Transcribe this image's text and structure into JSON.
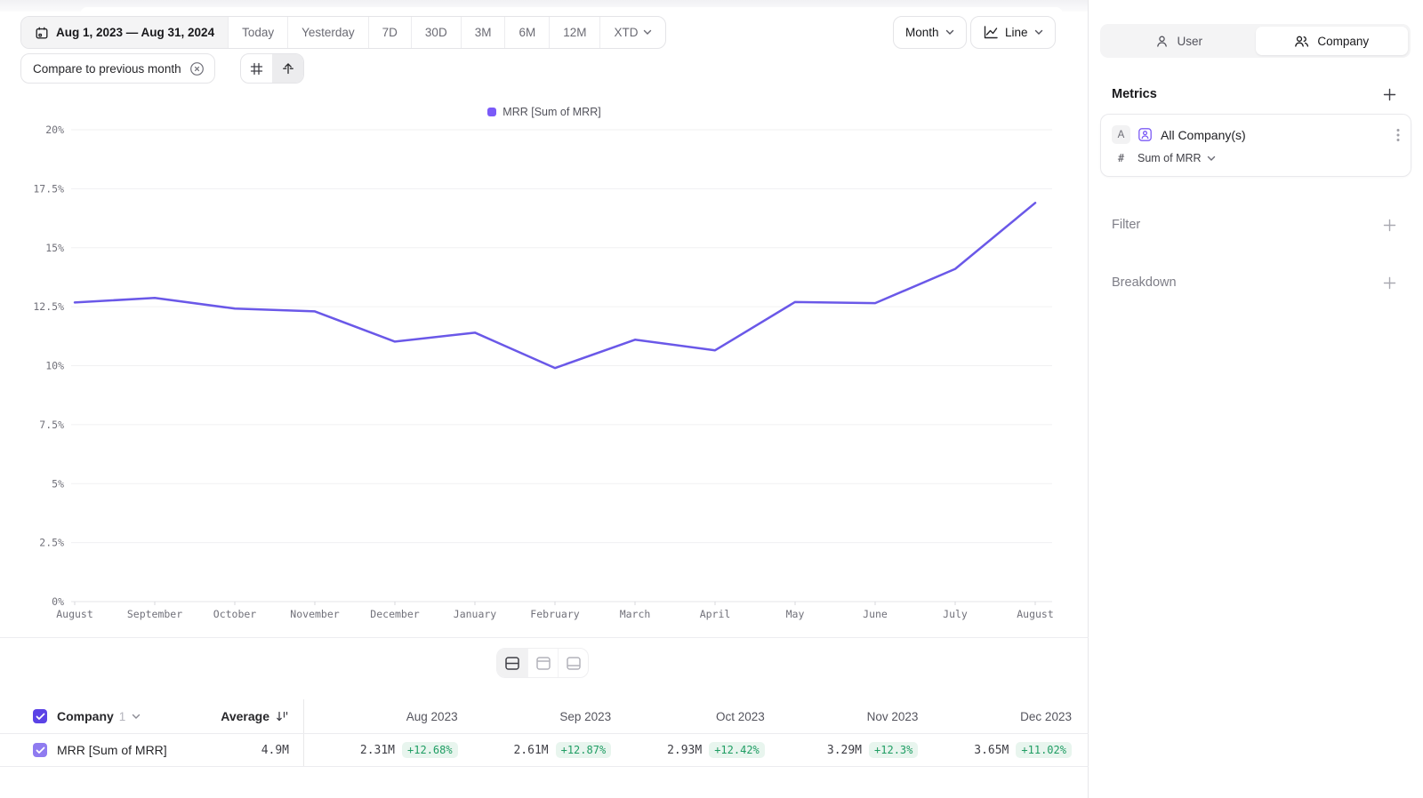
{
  "toolbar": {
    "date_range": "Aug 1, 2023 — Aug 31, 2024",
    "ranges": [
      "Today",
      "Yesterday",
      "7D",
      "30D",
      "3M",
      "6M",
      "12M",
      "XTD"
    ],
    "granularity": "Month",
    "chart_type": "Line",
    "compare_chip": "Compare to previous month"
  },
  "legend_label": "MRR [Sum of MRR]",
  "chart_data": {
    "type": "line",
    "title": "MRR [Sum of MRR]",
    "x": [
      "August",
      "September",
      "October",
      "November",
      "December",
      "January",
      "February",
      "March",
      "April",
      "May",
      "June",
      "July",
      "August"
    ],
    "series": [
      {
        "name": "MRR [Sum of MRR]",
        "values": [
          12.68,
          12.87,
          12.42,
          12.3,
          11.02,
          11.4,
          9.9,
          11.1,
          10.65,
          12.7,
          12.65,
          14.1,
          16.9
        ]
      }
    ],
    "ylabel_format": "percent",
    "ylim": [
      0,
      20
    ],
    "ytick_step": 2.5,
    "grid": "horizontal",
    "legend_position": "top-center",
    "line_color": "#6a58e8"
  },
  "sidebar": {
    "toggle": {
      "user": "User",
      "company": "Company"
    },
    "metrics_title": "Metrics",
    "metric": {
      "badge": "A",
      "name": "All Company(s)",
      "field_prefix": "#",
      "field": "Sum of MRR"
    },
    "filter_title": "Filter",
    "breakdown_title": "Breakdown"
  },
  "table": {
    "group_label": "Company",
    "group_count": "1",
    "average_label": "Average",
    "row_name": "MRR [Sum of MRR]",
    "average_value": "4.9M",
    "months": [
      {
        "label": "Aug 2023",
        "value": "2.31M",
        "change": "+12.68%"
      },
      {
        "label": "Sep 2023",
        "value": "2.61M",
        "change": "+12.87%"
      },
      {
        "label": "Oct 2023",
        "value": "2.93M",
        "change": "+12.42%"
      },
      {
        "label": "Nov 2023",
        "value": "3.29M",
        "change": "+12.3%"
      },
      {
        "label": "Dec 2023",
        "value": "3.65M",
        "change": "+11.02%"
      }
    ]
  },
  "colors": {
    "accent_line": "#6a58e8",
    "legend_swatch": "#7a5af8",
    "checkbox_header": "#5b43e6",
    "checkbox_row": "#8f7bf0",
    "badge_green": "#1f9d63",
    "badge_green_bg": "#e8f5ee"
  }
}
